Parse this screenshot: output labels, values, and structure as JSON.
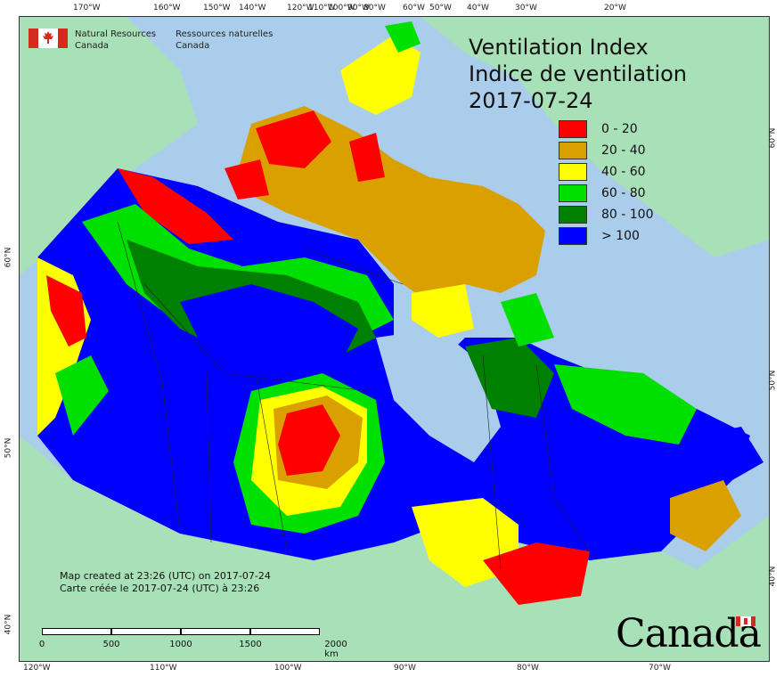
{
  "ticks": {
    "top": [
      "170°W",
      "160°W",
      "150°W",
      "140°W",
      "120°W",
      "110°W",
      "100°W",
      "90°W",
      "80°W",
      "60°W",
      "50°W",
      "40°W",
      "30°W",
      "20°W"
    ],
    "bottom": [
      "120°W",
      "110°W",
      "100°W",
      "90°W",
      "80°W",
      "70°W"
    ],
    "left": [
      "60°N",
      "50°N",
      "40°N"
    ],
    "right": [
      "60°N",
      "50°N",
      "40°N"
    ]
  },
  "branding": {
    "en_line1": "Natural Resources",
    "en_line2": "Canada",
    "fr_line1": "Ressources naturelles",
    "fr_line2": "Canada",
    "wordmark": "Canada"
  },
  "title": {
    "en": "Ventilation Index",
    "fr": "Indice de ventilation",
    "date": "2017-07-24"
  },
  "legend": [
    {
      "label": "0 - 20",
      "color": "#ff0000"
    },
    {
      "label": "20 - 40",
      "color": "#d9a000"
    },
    {
      "label": "40 - 60",
      "color": "#ffff00"
    },
    {
      "label": "60 - 80",
      "color": "#00e000"
    },
    {
      "label": "80 - 100",
      "color": "#008000"
    },
    {
      "label": "> 100",
      "color": "#0000ff"
    }
  ],
  "credit": {
    "en": "Map created at 23:26 (UTC) on 2017-07-24",
    "fr": "Carte créée le 2017-07-24 (UTC) à 23:26"
  },
  "scale": {
    "labels": [
      "0",
      "500",
      "1000",
      "1500",
      "2000 km"
    ]
  },
  "colors": {
    "water": "#a9cdea",
    "foreign_land": "#a8e0b8",
    "hudson_bay": "#a9cdea"
  }
}
